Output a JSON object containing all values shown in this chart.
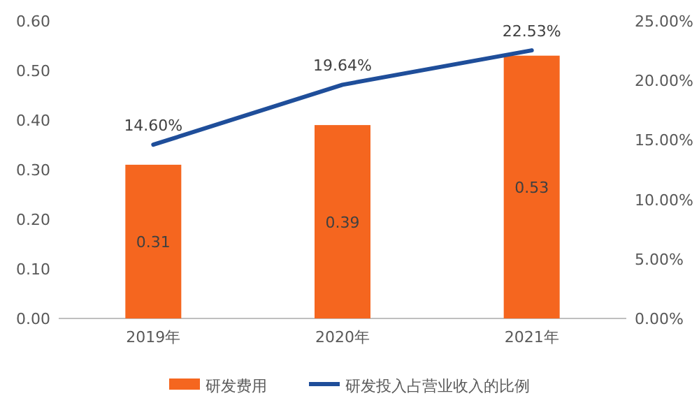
{
  "chart_data": {
    "type": "bar",
    "categories": [
      "2019年",
      "2020年",
      "2021年"
    ],
    "series": [
      {
        "name": "研发费用",
        "color": "#f5661f",
        "values": [
          0.31,
          0.39,
          0.53
        ],
        "value_labels": [
          "0.31",
          "0.39",
          "0.53"
        ]
      },
      {
        "name": "研发投入占营业收入的比例",
        "type": "line",
        "axis": "y2",
        "color": "#1f4e9a",
        "values": [
          14.6,
          19.64,
          22.53
        ],
        "value_labels": [
          "14.60%",
          "19.64%",
          "22.53%"
        ]
      }
    ],
    "ylim": [
      0,
      0.6
    ],
    "yticks": [
      {
        "value": 0,
        "label": "0.00"
      },
      {
        "value": 0.1,
        "label": "0.10"
      },
      {
        "value": 0.2,
        "label": "0.20"
      },
      {
        "value": 0.3,
        "label": "0.30"
      },
      {
        "value": 0.4,
        "label": "0.40"
      },
      {
        "value": 0.5,
        "label": "0.50"
      },
      {
        "value": 0.6,
        "label": "0.60"
      }
    ],
    "y2lim": [
      0,
      25
    ],
    "y2ticks": [
      {
        "value": 0,
        "label": "0.00%"
      },
      {
        "value": 5,
        "label": "5.00%"
      },
      {
        "value": 10,
        "label": "10.00%"
      },
      {
        "value": 15,
        "label": "15.00%"
      },
      {
        "value": 20,
        "label": "20.00%"
      },
      {
        "value": 25,
        "label": "25.00%"
      }
    ],
    "legend": "bottom"
  }
}
